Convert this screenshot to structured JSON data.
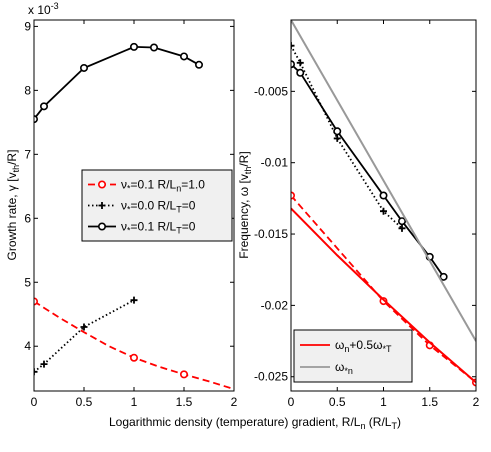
{
  "figure": {
    "xlabel_main": "Logarithmic density (temperature) gradient, R/L",
    "xlabel_sub_n": "n",
    "xlabel_paren": " (R/L",
    "xlabel_sub_T": "T",
    "xlabel_close": ")"
  },
  "chart_data": [
    {
      "type": "line",
      "title": "",
      "xlabel": "",
      "ylabel": "Growth rate, γ [v",
      "ylabel_sub": "th",
      "ylabel_tail": "/R]",
      "y_exponent_label": "x 10",
      "y_exponent_power": "-3",
      "xlim": [
        0,
        2
      ],
      "ylim": [
        3.3,
        9.1
      ],
      "xticks": [
        "0",
        "0.5",
        "1",
        "1.5",
        "2"
      ],
      "yticks": [
        "4",
        "5",
        "6",
        "7",
        "8",
        "9"
      ],
      "xtick_values": [
        0,
        0.5,
        1,
        1.5,
        2
      ],
      "ytick_values": [
        4,
        5,
        6,
        7,
        8,
        9
      ],
      "legend_position": "center-right",
      "series": [
        {
          "name": "ν*=0.1 R/Ln=1.0",
          "label_parts": [
            "ν",
            "*",
            "=0.1 R/L",
            "n",
            "=1.0"
          ],
          "color": "#ff0000",
          "style": "dashed",
          "marker": "o",
          "x": [
            0,
            0.25,
            0.5,
            0.75,
            1.0,
            1.25,
            1.5,
            1.75,
            2.0
          ],
          "y": [
            4.7,
            4.45,
            4.22,
            4.0,
            3.82,
            3.68,
            3.56,
            3.45,
            3.33
          ],
          "marker_x": [
            0,
            1,
            1.5
          ],
          "marker_y": [
            4.7,
            3.82,
            3.56
          ]
        },
        {
          "name": "ν*=0.0 R/LT=0",
          "label_parts": [
            "ν",
            "*",
            "=0.0 R/L",
            "T",
            "=0"
          ],
          "color": "#000000",
          "style": "dotted",
          "marker": "+",
          "x": [
            0,
            0.1,
            0.5,
            1.0
          ],
          "y": [
            3.6,
            3.72,
            4.3,
            4.72
          ],
          "marker_x": [
            0,
            0.1,
            0.5,
            1.0
          ],
          "marker_y": [
            3.6,
            3.72,
            4.3,
            4.72
          ]
        },
        {
          "name": "ν*=0.1 R/LT=0",
          "label_parts": [
            "ν",
            "*",
            "=0.1 R/L",
            "T",
            "=0"
          ],
          "color": "#000000",
          "style": "solid",
          "marker": "o",
          "x": [
            0,
            0.1,
            0.5,
            1.0,
            1.2,
            1.5,
            1.65
          ],
          "y": [
            7.55,
            7.75,
            8.35,
            8.68,
            8.67,
            8.53,
            8.4
          ],
          "marker_x": [
            0,
            0.1,
            0.5,
            1.0,
            1.2,
            1.5,
            1.65
          ],
          "marker_y": [
            7.55,
            7.75,
            8.35,
            8.68,
            8.67,
            8.53,
            8.4
          ]
        }
      ]
    },
    {
      "type": "line",
      "title": "",
      "xlabel": "",
      "ylabel": "Frequency, ω [v",
      "ylabel_sub": "th",
      "ylabel_tail": "/R]",
      "xlim": [
        0,
        2
      ],
      "ylim": [
        -0.026,
        0
      ],
      "xticks": [
        "0",
        "0.5",
        "1",
        "1.5",
        "2"
      ],
      "yticks": [
        "-0.005",
        "-0.01",
        "-0.015",
        "-0.02",
        "-0.025"
      ],
      "xtick_values": [
        0,
        0.5,
        1,
        1.5,
        2
      ],
      "ytick_values": [
        -0.005,
        -0.01,
        -0.015,
        -0.02,
        -0.025
      ],
      "legend_position": "bottom-left",
      "series": [
        {
          "name": "",
          "color": "#ff0000",
          "style": "dashed",
          "marker": "o",
          "x": [
            0,
            1.0,
            1.5,
            2.0
          ],
          "y": [
            -0.0123,
            -0.0197,
            -0.0228,
            -0.0254
          ],
          "marker_x": [
            0,
            1.0,
            1.5,
            2.0
          ],
          "marker_y": [
            -0.0123,
            -0.0197,
            -0.0228,
            -0.0254
          ]
        },
        {
          "name": "",
          "color": "#000000",
          "style": "dotted",
          "marker": "+",
          "x": [
            0,
            0.1,
            0.5,
            1.0,
            1.2
          ],
          "y": [
            -0.0018,
            -0.003,
            -0.0083,
            -0.0134,
            -0.0146
          ],
          "marker_x": [
            0,
            0.1,
            0.5,
            1.0,
            1.2
          ],
          "marker_y": [
            -0.0018,
            -0.003,
            -0.0083,
            -0.0134,
            -0.0146
          ]
        },
        {
          "name": "",
          "color": "#000000",
          "style": "solid",
          "marker": "o",
          "x": [
            0,
            0.1,
            0.5,
            1.0,
            1.2,
            1.5,
            1.65
          ],
          "y": [
            -0.0031,
            -0.0037,
            -0.0078,
            -0.0123,
            -0.0141,
            -0.0166,
            -0.018
          ],
          "marker_x": [
            0,
            0.1,
            0.5,
            1.0,
            1.2,
            1.5,
            1.65
          ],
          "marker_y": [
            -0.0031,
            -0.0037,
            -0.0078,
            -0.0123,
            -0.0141,
            -0.0166,
            -0.018
          ]
        },
        {
          "name": "ωn+0.5ω*T",
          "label_parts": [
            "ω",
            "n",
            "+0.5ω",
            "*T",
            ""
          ],
          "color": "#ff0000",
          "style": "solid",
          "marker": "none",
          "x": [
            0,
            0.5,
            1.0,
            1.5,
            2.0
          ],
          "y": [
            -0.0132,
            -0.0165,
            -0.0196,
            -0.0226,
            -0.0254
          ],
          "marker_x": [],
          "marker_y": []
        },
        {
          "name": "ω*n",
          "label_parts": [
            "ω",
            "*n",
            "",
            "",
            ""
          ],
          "color": "#999999",
          "style": "solid",
          "marker": "none",
          "x": [
            0,
            2.0
          ],
          "y": [
            0,
            -0.0225
          ],
          "marker_x": [],
          "marker_y": []
        }
      ]
    }
  ]
}
